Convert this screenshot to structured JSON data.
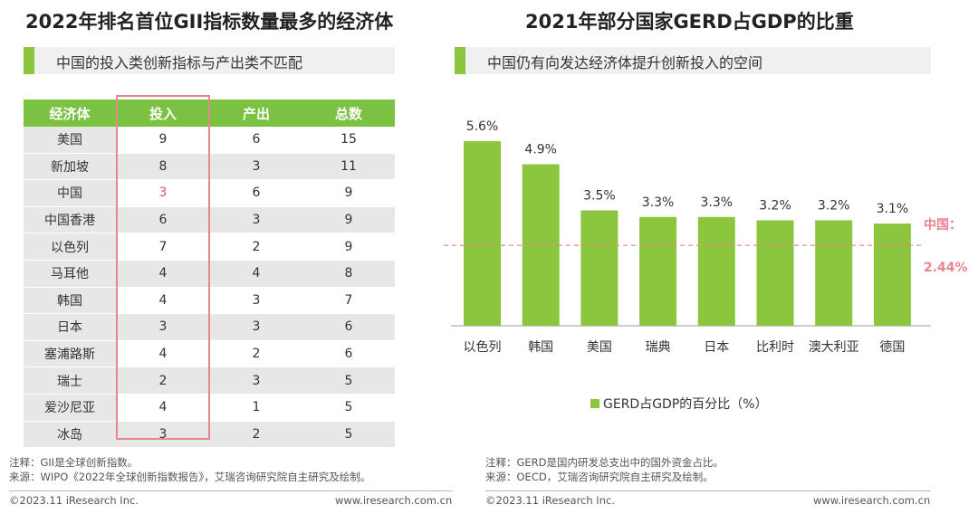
{
  "left_panel": {
    "title": "2022年排名首位GII指标数量最多的经济体",
    "subtitle": "中国的投入类创新指标与产出类不匹配",
    "table": {
      "headers": [
        "经济体",
        "投入",
        "产出",
        "总数"
      ],
      "rows": [
        {
          "name": "美国",
          "input": "9",
          "output": "6",
          "total": "15"
        },
        {
          "name": "新加坡",
          "input": "8",
          "output": "3",
          "total": "11"
        },
        {
          "name": "中国",
          "input": "3",
          "output": "6",
          "total": "9"
        },
        {
          "name": "中国香港",
          "input": "6",
          "output": "3",
          "total": "9"
        },
        {
          "name": "以色列",
          "input": "7",
          "output": "2",
          "total": "9"
        },
        {
          "name": "马耳他",
          "input": "4",
          "output": "4",
          "total": "8"
        },
        {
          "name": "韩国",
          "input": "4",
          "output": "3",
          "total": "7"
        },
        {
          "name": "日本",
          "input": "3",
          "output": "3",
          "total": "6"
        },
        {
          "name": "塞浦路斯",
          "input": "4",
          "output": "2",
          "total": "6"
        },
        {
          "name": "瑞士",
          "input": "2",
          "output": "3",
          "total": "5"
        },
        {
          "name": "爱沙尼亚",
          "input": "4",
          "output": "1",
          "total": "5"
        },
        {
          "name": "冰岛",
          "input": "3",
          "output": "2",
          "total": "5"
        }
      ]
    },
    "note": "注释：GII是全球创新指数。",
    "source": "来源：WIPO《2022年全球创新指数报告》，艾瑞咨询研究院自主研究及绘制。",
    "copyright": "©2023.11 iResearch Inc.",
    "website": "www.iresearch.com.cn"
  },
  "right_panel": {
    "title": "2021年部分国家GERD占GDP的比重",
    "subtitle": "中国仍有向发达经济体提升创新投入的空间",
    "note": "注释：GERD是国内研发总支出中的国外资金占比。",
    "source": "来源：OECD，艾瑞咨询研究院自主研究及绘制。",
    "copyright": "©2023.11 iResearch Inc.",
    "website": "www.iresearch.com.cn"
  },
  "colors": {
    "accent_green": "#8cc63f",
    "header_green": "#7bc242",
    "highlight_red": "#e3545e",
    "ref_line_pink": "#e8858d"
  },
  "chart_data": {
    "type": "bar",
    "title": "2021年部分国家GERD占GDP的比重",
    "categories": [
      "以色列",
      "韩国",
      "美国",
      "瑞典",
      "日本",
      "比利时",
      "澳大利亚",
      "德国"
    ],
    "values": [
      5.6,
      4.9,
      3.5,
      3.3,
      3.3,
      3.2,
      3.2,
      3.1
    ],
    "value_labels": [
      "5.6%",
      "4.9%",
      "3.5%",
      "3.3%",
      "3.3%",
      "3.2%",
      "3.2%",
      "3.1%"
    ],
    "series_name": "GERD占GDP的百分比（%）",
    "reference_line": {
      "value": 2.44,
      "label_name": "中国：",
      "label_value": "2.44%"
    },
    "ylim": [
      0,
      5.6
    ],
    "xlabel": "",
    "ylabel": "",
    "grid": false
  }
}
